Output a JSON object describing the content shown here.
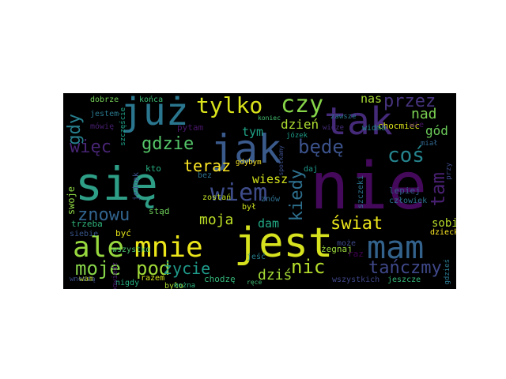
{
  "words": [
    {
      "text": "się",
      "color": "#2e9e86"
    },
    {
      "text": "nie",
      "color": "#44095a"
    },
    {
      "text": "jak",
      "color": "#3a5a8c"
    },
    {
      "text": "jest",
      "color": "#d7e21e"
    },
    {
      "text": "tak",
      "color": "#452a7a"
    },
    {
      "text": "już",
      "color": "#2a768e"
    },
    {
      "text": "mam",
      "color": "#33638d"
    },
    {
      "text": "ale",
      "color": "#97d83e"
    },
    {
      "text": "mnie",
      "color": "#ebe51a"
    },
    {
      "text": "tylko",
      "color": "#d9e21b"
    },
    {
      "text": "czy",
      "color": "#86d549"
    },
    {
      "text": "wiem",
      "color": "#3e4c8a"
    },
    {
      "text": "coś",
      "color": "#25848e"
    },
    {
      "text": "gdzie",
      "color": "#54c568"
    },
    {
      "text": "będę",
      "color": "#3b528b"
    },
    {
      "text": "nic",
      "color": "#b5de2b"
    },
    {
      "text": "moje",
      "color": "#87d549"
    },
    {
      "text": "pod",
      "color": "#a0da39"
    },
    {
      "text": "przez",
      "color": "#46337e"
    },
    {
      "text": "świat",
      "color": "#eae51a"
    },
    {
      "text": "tańczmy",
      "color": "#3f4889"
    },
    {
      "text": "znowu",
      "color": "#32648e"
    },
    {
      "text": "więc",
      "color": "#482575"
    },
    {
      "text": "gdy",
      "color": "#277f8e"
    },
    {
      "text": "teraz",
      "color": "#fde725"
    },
    {
      "text": "kiedy",
      "color": "#2d708e"
    },
    {
      "text": "nad",
      "color": "#7ad151"
    },
    {
      "text": "dzień",
      "color": "#addc30"
    },
    {
      "text": "tam",
      "color": "#482071"
    },
    {
      "text": "życie",
      "color": "#1f9a8a"
    },
    {
      "text": "dziś",
      "color": "#a5db36"
    },
    {
      "text": "moja",
      "color": "#bddf26"
    },
    {
      "text": "wiesz",
      "color": "#d2e21b"
    },
    {
      "text": "tym",
      "color": "#20a386"
    },
    {
      "text": "dam",
      "color": "#22a884"
    },
    {
      "text": "gód",
      "color": "#6ccd5a"
    },
    {
      "text": "nas",
      "color": "#a8db34"
    },
    {
      "text": "sobie",
      "color": "#b8de29"
    },
    {
      "text": "chocmiec",
      "color": "#dde318"
    },
    {
      "text": "żegnaj",
      "color": "#9bd93c"
    },
    {
      "text": "wszystko",
      "color": "#4ac16d"
    },
    {
      "text": "dobrze",
      "color": "#73d056"
    },
    {
      "text": "końca",
      "color": "#3dbc74"
    },
    {
      "text": "stąd",
      "color": "#6ece58"
    },
    {
      "text": "swoje",
      "color": "#8fd744"
    },
    {
      "text": "trzeba",
      "color": "#2fb47c"
    },
    {
      "text": "być",
      "color": "#e5e419"
    },
    {
      "text": "siebie",
      "color": "#39568c"
    },
    {
      "text": "wam",
      "color": "#cae11f"
    },
    {
      "text": "nigdy",
      "color": "#26ad81"
    },
    {
      "text": "razem",
      "color": "#d5e21a"
    },
    {
      "text": "chodzę",
      "color": "#34b679"
    },
    {
      "text": "wszystkich",
      "color": "#3f4788"
    },
    {
      "text": "jeszcze",
      "color": "#35b779"
    },
    {
      "text": "dziecko",
      "color": "#fde725"
    },
    {
      "text": "lepiej",
      "color": "#365c8d"
    },
    {
      "text": "człowiek",
      "color": "#2c728e"
    },
    {
      "text": "szczęście",
      "color": "#1fa188"
    },
    {
      "text": "jestem",
      "color": "#2a788e"
    },
    {
      "text": "mówię",
      "color": "#481f70"
    },
    {
      "text": "pytam",
      "color": "#481769"
    },
    {
      "text": "zostań",
      "color": "#c0df25"
    },
    {
      "text": "był",
      "color": "#cde11d"
    },
    {
      "text": "bez",
      "color": "#2d718e"
    },
    {
      "text": "kto",
      "color": "#28ae80"
    },
    {
      "text": "daj",
      "color": "#1f988b"
    },
    {
      "text": "znów",
      "color": "#2e6e8e"
    },
    {
      "text": "jednak",
      "color": "#3b518b"
    },
    {
      "text": "może",
      "color": "#3e4a89"
    },
    {
      "text": "raz",
      "color": "#440154"
    },
    {
      "text": "wie",
      "color": "#471365"
    },
    {
      "text": "gdybym",
      "color": "#fde725"
    },
    {
      "text": "spotkamy",
      "color": "#3c4f8a"
    },
    {
      "text": "zawsze",
      "color": "#2b758e"
    },
    {
      "text": "jeść",
      "color": "#277e8e"
    },
    {
      "text": "było",
      "color": "#addc30"
    },
    {
      "text": "można",
      "color": "#2db27d"
    },
    {
      "text": "ręce",
      "color": "#3fbc73"
    },
    {
      "text": "widmo",
      "color": "#23898e"
    },
    {
      "text": "szczeki",
      "color": "#2b748e"
    },
    {
      "text": "miał",
      "color": "#31668e"
    },
    {
      "text": "przy",
      "color": "#3e4989"
    },
    {
      "text": "koniec",
      "color": "#44bf70"
    },
    {
      "text": "józek",
      "color": "#1e9c89"
    },
    {
      "text": "widze",
      "color": "#472d7b"
    },
    {
      "text": "wnoszą",
      "color": "#3c508b"
    },
    {
      "text": "powiedz",
      "color": "#481c6e"
    },
    {
      "text": "gdzieś",
      "color": "#2a788e"
    }
  ]
}
